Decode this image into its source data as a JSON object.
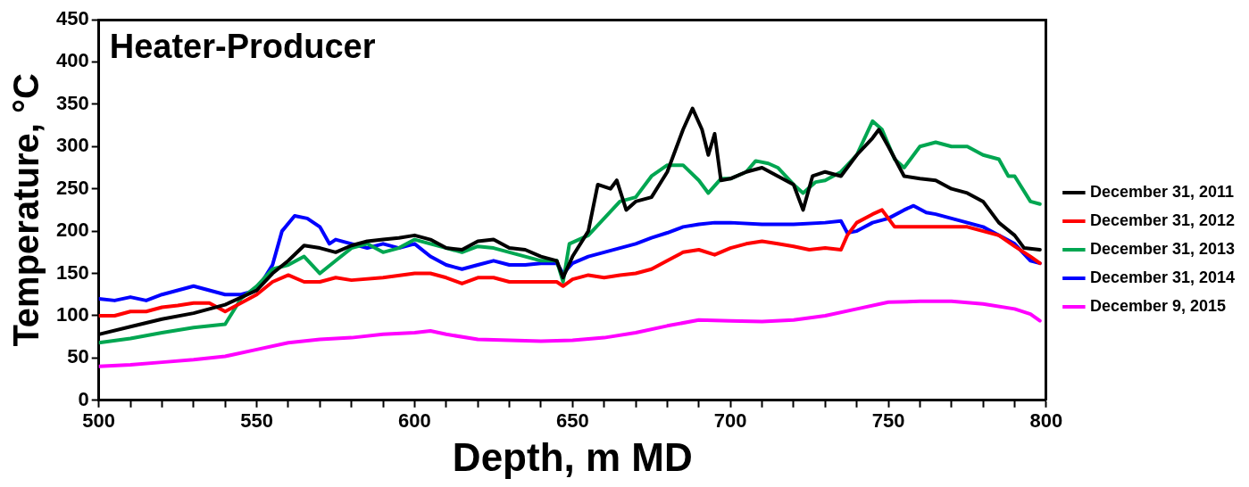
{
  "chart_data": {
    "type": "line",
    "title": "Heater-Producer",
    "xlabel": "Depth, m MD",
    "ylabel": "Temperature, °C",
    "xlim": [
      500,
      800
    ],
    "ylim": [
      0,
      450
    ],
    "xticks": [
      500,
      {
        "value": 510,
        "label": null
      },
      {
        "value": 520,
        "label": null
      },
      {
        "value": 530,
        "label": null
      },
      {
        "value": 540,
        "label": null
      },
      550,
      {
        "value": 560,
        "label": null
      },
      {
        "value": 570,
        "label": null
      },
      {
        "value": 580,
        "label": null
      },
      {
        "value": 590,
        "label": null
      },
      600,
      {
        "value": 610,
        "label": null
      },
      {
        "value": 620,
        "label": null
      },
      {
        "value": 630,
        "label": null
      },
      {
        "value": 640,
        "label": null
      },
      650,
      {
        "value": 660,
        "label": null
      },
      {
        "value": 670,
        "label": null
      },
      {
        "value": 680,
        "label": null
      },
      {
        "value": 690,
        "label": null
      },
      700,
      {
        "value": 710,
        "label": null
      },
      {
        "value": 720,
        "label": null
      },
      {
        "value": 730,
        "label": null
      },
      {
        "value": 740,
        "label": null
      },
      750,
      {
        "value": 760,
        "label": null
      },
      {
        "value": 770,
        "label": null
      },
      {
        "value": 780,
        "label": null
      },
      {
        "value": 790,
        "label": null
      },
      800
    ],
    "yticks": [
      0,
      50,
      100,
      150,
      200,
      250,
      300,
      350,
      400,
      450
    ],
    "grid": false,
    "legend": "right",
    "marker": "none",
    "line_style": "solid",
    "series": [
      {
        "name": "December 31, 2011",
        "color": "#000000",
        "x": [
          500,
          510,
          520,
          530,
          540,
          550,
          555,
          560,
          565,
          570,
          575,
          580,
          585,
          590,
          595,
          600,
          605,
          610,
          615,
          620,
          625,
          630,
          635,
          640,
          645,
          647,
          650,
          655,
          658,
          662,
          664,
          667,
          670,
          675,
          680,
          685,
          688,
          691,
          693,
          695,
          697,
          700,
          705,
          710,
          715,
          720,
          723,
          726,
          730,
          735,
          740,
          745,
          747,
          750,
          755,
          760,
          765,
          770,
          775,
          780,
          785,
          790,
          793,
          798
        ],
        "values": [
          78,
          87,
          96,
          103,
          113,
          130,
          150,
          165,
          183,
          180,
          175,
          183,
          188,
          190,
          192,
          195,
          190,
          180,
          178,
          188,
          190,
          180,
          178,
          170,
          165,
          145,
          170,
          200,
          255,
          250,
          260,
          225,
          235,
          240,
          270,
          320,
          345,
          320,
          290,
          315,
          260,
          262,
          270,
          275,
          265,
          255,
          225,
          265,
          270,
          265,
          290,
          310,
          320,
          300,
          265,
          262,
          260,
          250,
          245,
          235,
          210,
          195,
          180,
          178
        ]
      },
      {
        "name": "December 31, 2012",
        "color": "#ff0000",
        "x": [
          500,
          505,
          510,
          515,
          520,
          525,
          530,
          535,
          540,
          545,
          550,
          555,
          560,
          565,
          570,
          575,
          580,
          590,
          600,
          605,
          610,
          615,
          620,
          625,
          630,
          640,
          645,
          647,
          650,
          655,
          660,
          665,
          670,
          675,
          680,
          685,
          690,
          695,
          700,
          705,
          710,
          715,
          720,
          725,
          730,
          735,
          737,
          740,
          745,
          748,
          752,
          755,
          760,
          765,
          770,
          775,
          780,
          785,
          790,
          795,
          798
        ],
        "values": [
          100,
          100,
          105,
          105,
          110,
          112,
          115,
          115,
          105,
          115,
          125,
          140,
          148,
          140,
          140,
          145,
          142,
          145,
          150,
          150,
          145,
          138,
          145,
          145,
          140,
          140,
          140,
          135,
          143,
          148,
          145,
          148,
          150,
          155,
          165,
          175,
          178,
          172,
          180,
          185,
          188,
          185,
          182,
          178,
          180,
          178,
          195,
          210,
          220,
          225,
          205,
          205,
          205,
          205,
          205,
          205,
          200,
          195,
          182,
          170,
          162
        ]
      },
      {
        "name": "December 31, 2013",
        "color": "#00a651",
        "x": [
          500,
          510,
          520,
          530,
          540,
          545,
          550,
          555,
          560,
          565,
          570,
          575,
          580,
          585,
          590,
          595,
          600,
          605,
          610,
          615,
          620,
          625,
          630,
          635,
          640,
          645,
          647,
          649,
          655,
          660,
          665,
          670,
          675,
          680,
          685,
          690,
          693,
          697,
          700,
          705,
          708,
          712,
          715,
          720,
          723,
          727,
          730,
          735,
          740,
          745,
          748,
          752,
          755,
          760,
          765,
          770,
          775,
          780,
          785,
          788,
          790,
          795,
          798
        ],
        "values": [
          68,
          73,
          80,
          86,
          90,
          120,
          135,
          155,
          160,
          170,
          150,
          165,
          180,
          185,
          175,
          180,
          190,
          185,
          180,
          175,
          182,
          180,
          175,
          170,
          165,
          165,
          140,
          185,
          195,
          215,
          235,
          240,
          265,
          278,
          278,
          260,
          245,
          262,
          262,
          270,
          283,
          280,
          275,
          255,
          245,
          258,
          260,
          270,
          290,
          330,
          320,
          285,
          275,
          300,
          305,
          300,
          300,
          290,
          285,
          265,
          265,
          235,
          232
        ]
      },
      {
        "name": "December 31, 2014",
        "color": "#0000ff",
        "x": [
          500,
          505,
          510,
          515,
          520,
          525,
          530,
          535,
          540,
          545,
          550,
          555,
          558,
          562,
          566,
          570,
          573,
          575,
          580,
          585,
          590,
          595,
          600,
          605,
          610,
          615,
          620,
          625,
          630,
          635,
          640,
          645,
          647,
          650,
          655,
          660,
          665,
          670,
          675,
          680,
          685,
          690,
          695,
          700,
          710,
          720,
          730,
          735,
          737,
          740,
          745,
          750,
          755,
          758,
          762,
          765,
          770,
          775,
          780,
          785,
          790,
          795,
          798
        ],
        "values": [
          120,
          118,
          122,
          118,
          125,
          130,
          135,
          130,
          125,
          125,
          130,
          160,
          200,
          218,
          215,
          205,
          185,
          190,
          185,
          180,
          185,
          180,
          185,
          170,
          160,
          155,
          160,
          165,
          160,
          160,
          162,
          162,
          150,
          162,
          170,
          175,
          180,
          185,
          192,
          198,
          205,
          208,
          210,
          210,
          208,
          208,
          210,
          212,
          198,
          200,
          210,
          215,
          225,
          230,
          222,
          220,
          215,
          210,
          205,
          195,
          185,
          165,
          162
        ]
      },
      {
        "name": "December 9, 2015",
        "color": "#ff00ff",
        "x": [
          500,
          510,
          520,
          530,
          540,
          550,
          560,
          570,
          580,
          590,
          600,
          605,
          610,
          620,
          630,
          640,
          650,
          660,
          670,
          680,
          690,
          700,
          710,
          720,
          730,
          740,
          750,
          760,
          770,
          780,
          790,
          795,
          798
        ],
        "values": [
          40,
          42,
          45,
          48,
          52,
          60,
          68,
          72,
          74,
          78,
          80,
          82,
          78,
          72,
          71,
          70,
          71,
          74,
          80,
          88,
          95,
          94,
          93,
          95,
          100,
          108,
          116,
          117,
          117,
          114,
          108,
          102,
          94
        ]
      }
    ]
  }
}
